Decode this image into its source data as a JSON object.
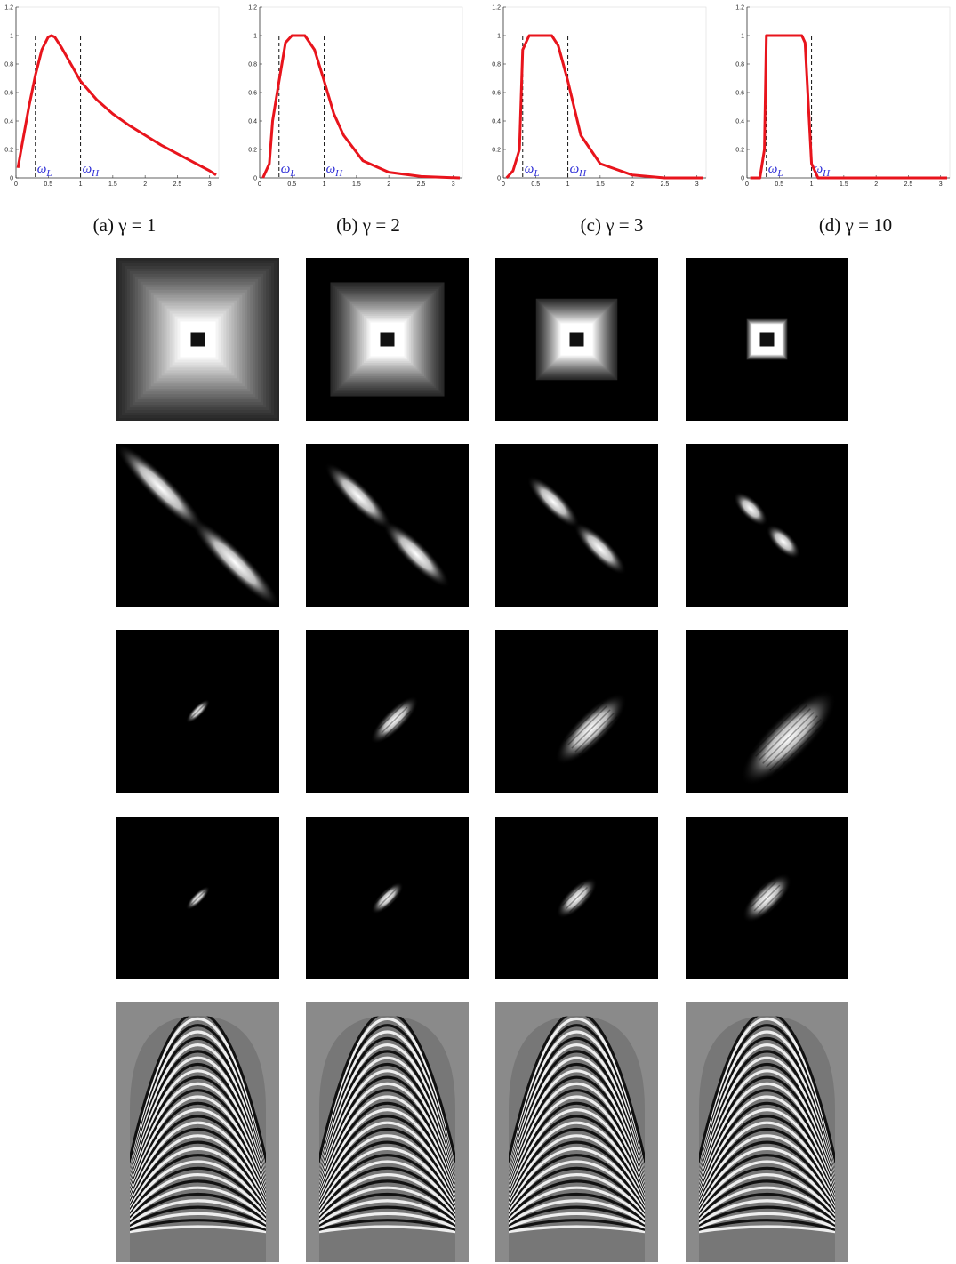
{
  "chart_data": [
    {
      "type": "line",
      "caption": "(a) γ = 1",
      "x": [
        0.03,
        0.1,
        0.2,
        0.3,
        0.4,
        0.5,
        0.55,
        0.6,
        0.7,
        0.85,
        1.0,
        1.25,
        1.5,
        1.75,
        2.0,
        2.25,
        2.5,
        2.75,
        3.0,
        3.1
      ],
      "series": [
        {
          "color": "#e8141c",
          "values": [
            0.07,
            0.25,
            0.5,
            0.72,
            0.9,
            0.99,
            1.0,
            0.99,
            0.92,
            0.8,
            0.68,
            0.55,
            0.45,
            0.37,
            0.3,
            0.23,
            0.17,
            0.11,
            0.05,
            0.02
          ]
        }
      ],
      "xlim": [
        0,
        3.1416
      ],
      "ylim": [
        0,
        1.2
      ],
      "xticks": [
        0,
        0.5,
        1,
        1.5,
        2,
        2.5,
        3
      ],
      "yticks": [
        0,
        0.2,
        0.4,
        0.6,
        0.8,
        1,
        1.2
      ],
      "annotations": [
        {
          "x": 0.3,
          "symbol": "ω",
          "subscript": "L"
        },
        {
          "x": 1,
          "symbol": "ω",
          "subscript": "H"
        }
      ]
    },
    {
      "type": "line",
      "caption": "(b) γ = 2",
      "x": [
        0.05,
        0.15,
        0.2,
        0.3,
        0.4,
        0.5,
        0.7,
        0.85,
        1.0,
        1.15,
        1.3,
        1.6,
        2.0,
        2.5,
        3.1
      ],
      "series": [
        {
          "color": "#e8141c",
          "values": [
            0.0,
            0.1,
            0.4,
            0.68,
            0.95,
            1.0,
            1.0,
            0.9,
            0.68,
            0.45,
            0.3,
            0.12,
            0.04,
            0.01,
            0.0
          ]
        }
      ],
      "xlim": [
        0,
        3.1416
      ],
      "ylim": [
        0,
        1.2
      ],
      "xticks": [
        0,
        0.5,
        1,
        1.5,
        2,
        2.5,
        3
      ],
      "yticks": [
        0,
        0.2,
        0.4,
        0.6,
        0.8,
        1,
        1.2
      ],
      "annotations": [
        {
          "x": 0.3,
          "symbol": "ω",
          "subscript": "L"
        },
        {
          "x": 1,
          "symbol": "ω",
          "subscript": "H"
        }
      ]
    },
    {
      "type": "line",
      "caption": "(c) γ = 3",
      "x": [
        0.05,
        0.15,
        0.25,
        0.3,
        0.4,
        0.75,
        0.85,
        1.0,
        1.2,
        1.5,
        2.0,
        2.5,
        3.1
      ],
      "series": [
        {
          "color": "#e8141c",
          "values": [
            0.0,
            0.05,
            0.2,
            0.9,
            1.0,
            1.0,
            0.93,
            0.68,
            0.3,
            0.1,
            0.02,
            0.0,
            0.0
          ]
        }
      ],
      "xlim": [
        0,
        3.1416
      ],
      "ylim": [
        0,
        1.2
      ],
      "xticks": [
        0,
        0.5,
        1,
        1.5,
        2,
        2.5,
        3
      ],
      "yticks": [
        0,
        0.2,
        0.4,
        0.6,
        0.8,
        1,
        1.2
      ],
      "annotations": [
        {
          "x": 0.3,
          "symbol": "ω",
          "subscript": "L"
        },
        {
          "x": 1,
          "symbol": "ω",
          "subscript": "H"
        }
      ]
    },
    {
      "type": "line",
      "caption": "(d) γ = 10",
      "x": [
        0.05,
        0.2,
        0.27,
        0.3,
        0.85,
        0.9,
        1.0,
        1.1,
        3.1
      ],
      "series": [
        {
          "color": "#e8141c",
          "values": [
            0.0,
            0.0,
            0.2,
            1.0,
            1.0,
            0.95,
            0.1,
            0.0,
            0.0
          ]
        }
      ],
      "xlim": [
        0,
        3.1416
      ],
      "ylim": [
        0,
        1.2
      ],
      "xticks": [
        0,
        0.5,
        1,
        1.5,
        2,
        2.5,
        3
      ],
      "yticks": [
        0,
        0.2,
        0.4,
        0.6,
        0.8,
        1,
        1.2
      ],
      "annotations": [
        {
          "x": 0.3,
          "symbol": "ω",
          "subscript": "L"
        },
        {
          "x": 1,
          "symbol": "ω",
          "subscript": "H"
        }
      ]
    }
  ]
}
